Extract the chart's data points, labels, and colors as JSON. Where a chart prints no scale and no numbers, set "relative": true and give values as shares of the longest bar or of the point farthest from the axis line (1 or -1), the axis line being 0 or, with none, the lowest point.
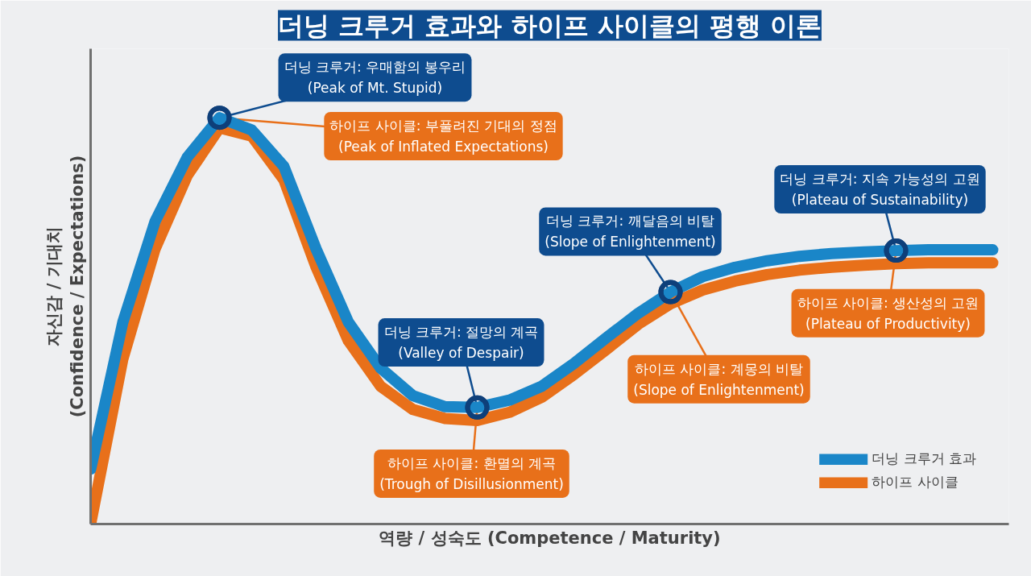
{
  "chart_data": {
    "type": "line",
    "title": "더닝 크루거 효과와 하이프 사이클의 평행 이론",
    "xlabel": "역량 / 성숙도 (Competence / Maturity)",
    "ylabel": "자신감 / 기대치\n(Confidence / Expectations)",
    "relative": true,
    "legend": "bottom right",
    "marker": "none",
    "line_style": "solid",
    "categories": [
      null,
      null,
      null,
      null,
      null,
      null,
      null,
      null,
      null,
      null,
      null,
      null,
      null,
      null,
      null,
      null,
      null,
      null,
      null,
      null,
      null,
      null,
      null,
      null,
      null,
      null,
      null,
      null,
      null
    ],
    "series": [
      {
        "name": "더닝 크루거 효과",
        "color": "#1a86c8",
        "values": [
          0.135,
          0.497,
          0.745,
          0.903,
          1.0,
          0.97,
          0.88,
          0.677,
          0.497,
          0.384,
          0.316,
          0.289,
          0.287,
          0.305,
          0.339,
          0.395,
          0.458,
          0.519,
          0.571,
          0.609,
          0.632,
          0.648,
          0.659,
          0.666,
          0.67,
          0.673,
          0.675,
          0.675,
          0.675
        ]
      },
      {
        "name": "하이프 사이클",
        "color": "#e8701a",
        "values": [
          0,
          0.406,
          0.677,
          0.858,
          0.975,
          0.955,
          0.847,
          0.632,
          0.451,
          0.339,
          0.282,
          0.26,
          0.255,
          0.275,
          0.312,
          0.368,
          0.429,
          0.492,
          0.542,
          0.576,
          0.598,
          0.614,
          0.625,
          0.632,
          0.637,
          0.641,
          0.643,
          0.643,
          0.643
        ]
      }
    ],
    "annotations": [
      "더닝 크루거: 우매함의 봉우리\n(Peak of Mt. Stupid)",
      "하이프 사이클: 부풀려진 기대의 정점\n(Peak of Inflated Expectations)",
      "더닝 크루거: 절망의 계곡\n(Valley of Despair)",
      "하이프 사이클: 환멸의 계곡\n(Trough of Disillusionment)",
      "더닝 크루거: 깨달음의 비탈\n(Slope of Enlightenment)",
      "하이프 사이클: 계몽의 비탈\n(Slope of Enlightenment)",
      "더닝 크루거: 지속 가능성의 고원\n(Plateau of Sustainability)",
      "하이프 사이클: 생산성의 고원\n(Plateau of Productivity)"
    ]
  }
}
